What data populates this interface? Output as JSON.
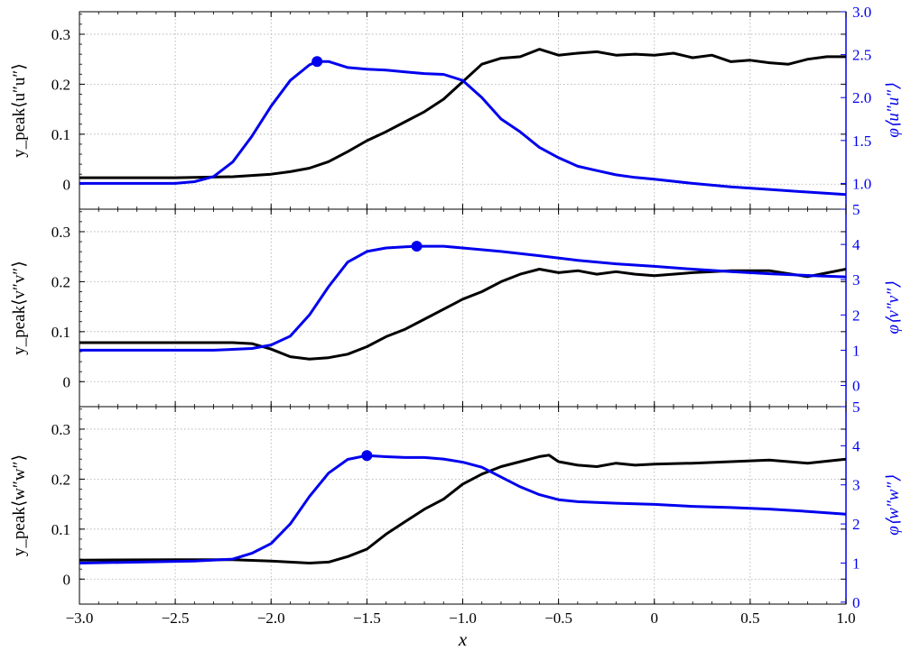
{
  "chart_data": [
    {
      "type": "line",
      "panel": "uu",
      "xlabel": "x",
      "ylabel_left": "y_peak⟨u″u″⟩",
      "ylabel_right": "φ⟨u″u″⟩",
      "xlim": [
        -3.0,
        1.0
      ],
      "ylim_left": [
        -0.05,
        0.345
      ],
      "ylim_right": [
        0.7,
        3.0
      ],
      "xticks": [
        -3.0,
        -2.5,
        -2.0,
        -1.5,
        -1.0,
        -0.5,
        0,
        0.5,
        1.0
      ],
      "xticklabels": [
        "−3.0",
        "−2.5",
        "−2.0",
        "−1.5",
        "−1.0",
        "−0.5",
        "0",
        "0.5",
        "1.0"
      ],
      "yticks_left": [
        0,
        0.1,
        0.2,
        0.3
      ],
      "yticklabels_left": [
        "0",
        "0.1",
        "0.2",
        "0.3"
      ],
      "yticks_right": [
        1.0,
        1.5,
        2.0,
        2.5,
        3.0
      ],
      "yticklabels_right": [
        "1.0",
        "1.5",
        "2.0",
        "2.5",
        "3.0"
      ],
      "grid": true,
      "series": [
        {
          "axis": "left",
          "color": "#000000",
          "x": [
            -3.0,
            -2.5,
            -2.2,
            -2.0,
            -1.9,
            -1.8,
            -1.7,
            -1.6,
            -1.5,
            -1.4,
            -1.3,
            -1.2,
            -1.1,
            -1.0,
            -0.9,
            -0.8,
            -0.7,
            -0.6,
            -0.5,
            -0.4,
            -0.3,
            -0.2,
            -0.1,
            0.0,
            0.1,
            0.2,
            0.3,
            0.4,
            0.5,
            0.6,
            0.7,
            0.8,
            0.9,
            1.0
          ],
          "y": [
            0.013,
            0.013,
            0.015,
            0.02,
            0.025,
            0.032,
            0.045,
            0.065,
            0.087,
            0.105,
            0.125,
            0.145,
            0.17,
            0.205,
            0.24,
            0.252,
            0.255,
            0.27,
            0.258,
            0.262,
            0.265,
            0.258,
            0.26,
            0.258,
            0.262,
            0.253,
            0.258,
            0.245,
            0.248,
            0.243,
            0.24,
            0.25,
            0.255,
            0.255
          ]
        },
        {
          "axis": "right",
          "color": "#0000ee",
          "x": [
            -3.0,
            -2.5,
            -2.4,
            -2.3,
            -2.2,
            -2.1,
            -2.0,
            -1.9,
            -1.8,
            -1.76,
            -1.7,
            -1.6,
            -1.5,
            -1.4,
            -1.3,
            -1.2,
            -1.1,
            -1.0,
            -0.9,
            -0.8,
            -0.7,
            -0.6,
            -0.5,
            -0.4,
            -0.3,
            -0.2,
            -0.1,
            0.0,
            0.2,
            0.4,
            0.6,
            0.8,
            1.0
          ],
          "y": [
            1.0,
            1.0,
            1.02,
            1.08,
            1.25,
            1.55,
            1.9,
            2.2,
            2.38,
            2.42,
            2.42,
            2.35,
            2.33,
            2.32,
            2.3,
            2.28,
            2.27,
            2.2,
            2.0,
            1.75,
            1.6,
            1.42,
            1.3,
            1.2,
            1.15,
            1.1,
            1.07,
            1.05,
            1.0,
            0.96,
            0.93,
            0.9,
            0.87
          ]
        }
      ],
      "markers": [
        {
          "axis": "right",
          "x": -1.76,
          "y": 2.42,
          "color": "#0000ee"
        }
      ]
    },
    {
      "type": "line",
      "panel": "vv",
      "xlabel": "x",
      "ylabel_left": "y_peak⟨v″v″⟩",
      "ylabel_right": "φ⟨v″v″⟩",
      "xlim": [
        -3.0,
        1.0
      ],
      "ylim_left": [
        -0.05,
        0.345
      ],
      "ylim_right": [
        -0.6,
        5.0
      ],
      "xticks": [
        -3.0,
        -2.5,
        -2.0,
        -1.5,
        -1.0,
        -0.5,
        0,
        0.5,
        1.0
      ],
      "yticks_left": [
        0,
        0.1,
        0.2,
        0.3
      ],
      "yticklabels_left": [
        "0",
        "0.1",
        "0.2",
        "0.3"
      ],
      "yticks_right": [
        0,
        1,
        2,
        3,
        4,
        5
      ],
      "yticklabels_right": [
        "0",
        "1",
        "2",
        "3",
        "4",
        "5"
      ],
      "grid": true,
      "series": [
        {
          "axis": "left",
          "color": "#000000",
          "x": [
            -3.0,
            -2.5,
            -2.2,
            -2.1,
            -2.0,
            -1.9,
            -1.8,
            -1.7,
            -1.6,
            -1.5,
            -1.4,
            -1.3,
            -1.2,
            -1.1,
            -1.0,
            -0.9,
            -0.8,
            -0.7,
            -0.6,
            -0.5,
            -0.4,
            -0.3,
            -0.2,
            -0.1,
            0.0,
            0.2,
            0.4,
            0.6,
            0.8,
            1.0
          ],
          "y": [
            0.078,
            0.078,
            0.078,
            0.076,
            0.065,
            0.05,
            0.045,
            0.048,
            0.055,
            0.07,
            0.09,
            0.105,
            0.125,
            0.145,
            0.165,
            0.18,
            0.2,
            0.215,
            0.225,
            0.218,
            0.222,
            0.215,
            0.22,
            0.215,
            0.212,
            0.218,
            0.222,
            0.222,
            0.21,
            0.225
          ]
        },
        {
          "axis": "right",
          "color": "#0000ee",
          "x": [
            -3.0,
            -2.3,
            -2.1,
            -2.0,
            -1.9,
            -1.8,
            -1.7,
            -1.6,
            -1.5,
            -1.4,
            -1.3,
            -1.24,
            -1.2,
            -1.1,
            -1.0,
            -0.8,
            -0.6,
            -0.4,
            -0.2,
            0.0,
            0.2,
            0.4,
            0.6,
            0.8,
            1.0
          ],
          "y": [
            1.0,
            1.0,
            1.05,
            1.15,
            1.4,
            2.0,
            2.8,
            3.5,
            3.8,
            3.9,
            3.93,
            3.95,
            3.95,
            3.95,
            3.9,
            3.8,
            3.68,
            3.55,
            3.45,
            3.38,
            3.3,
            3.23,
            3.17,
            3.12,
            3.08
          ]
        }
      ],
      "markers": [
        {
          "axis": "right",
          "x": -1.24,
          "y": 3.95,
          "color": "#0000ee"
        }
      ]
    },
    {
      "type": "line",
      "panel": "ww",
      "xlabel": "x",
      "ylabel_left": "y_peak⟨w″w″⟩",
      "ylabel_right": "φ⟨w″w″⟩",
      "xlim": [
        -3.0,
        1.0
      ],
      "ylim_left": [
        -0.05,
        0.345
      ],
      "ylim_right": [
        -0.05,
        5.0
      ],
      "xticks": [
        -3.0,
        -2.5,
        -2.0,
        -1.5,
        -1.0,
        -0.5,
        0,
        0.5,
        1.0
      ],
      "xticklabels": [
        "−3.0",
        "−2.5",
        "−2.0",
        "−1.5",
        "−1.0",
        "−0.5",
        "0",
        "0.5",
        "1.0"
      ],
      "yticks_left": [
        0,
        0.1,
        0.2,
        0.3
      ],
      "yticklabels_left": [
        "0",
        "0.1",
        "0.2",
        "0.3"
      ],
      "yticks_right": [
        0,
        1,
        2,
        3,
        4,
        5
      ],
      "yticklabels_right": [
        "0",
        "1",
        "2",
        "3",
        "4",
        "5"
      ],
      "grid": true,
      "series": [
        {
          "axis": "left",
          "color": "#000000",
          "x": [
            -3.0,
            -2.5,
            -2.2,
            -2.0,
            -1.9,
            -1.8,
            -1.7,
            -1.6,
            -1.5,
            -1.4,
            -1.3,
            -1.2,
            -1.1,
            -1.0,
            -0.9,
            -0.8,
            -0.7,
            -0.6,
            -0.55,
            -0.5,
            -0.4,
            -0.3,
            -0.2,
            -0.1,
            0.0,
            0.2,
            0.4,
            0.6,
            0.8,
            1.0
          ],
          "y": [
            0.038,
            0.039,
            0.039,
            0.036,
            0.034,
            0.032,
            0.034,
            0.045,
            0.06,
            0.09,
            0.115,
            0.14,
            0.16,
            0.19,
            0.21,
            0.225,
            0.235,
            0.245,
            0.248,
            0.235,
            0.228,
            0.225,
            0.232,
            0.228,
            0.23,
            0.232,
            0.235,
            0.238,
            0.232,
            0.24
          ]
        },
        {
          "axis": "right",
          "color": "#0000ee",
          "x": [
            -3.0,
            -2.4,
            -2.2,
            -2.1,
            -2.0,
            -1.9,
            -1.8,
            -1.7,
            -1.6,
            -1.5,
            -1.4,
            -1.3,
            -1.2,
            -1.1,
            -1.0,
            -0.9,
            -0.8,
            -0.7,
            -0.6,
            -0.5,
            -0.4,
            -0.2,
            0.0,
            0.2,
            0.4,
            0.6,
            0.8,
            1.0
          ],
          "y": [
            1.0,
            1.05,
            1.1,
            1.25,
            1.5,
            2.0,
            2.7,
            3.3,
            3.65,
            3.75,
            3.72,
            3.7,
            3.7,
            3.66,
            3.58,
            3.45,
            3.2,
            2.95,
            2.75,
            2.62,
            2.57,
            2.53,
            2.5,
            2.45,
            2.42,
            2.38,
            2.32,
            2.25
          ]
        }
      ],
      "markers": [
        {
          "axis": "right",
          "x": -1.5,
          "y": 3.75,
          "color": "#0000ee"
        }
      ]
    }
  ],
  "colors": {
    "left_series": "#000000",
    "right_series": "#0000ee",
    "grid": "#aaaaaa"
  }
}
